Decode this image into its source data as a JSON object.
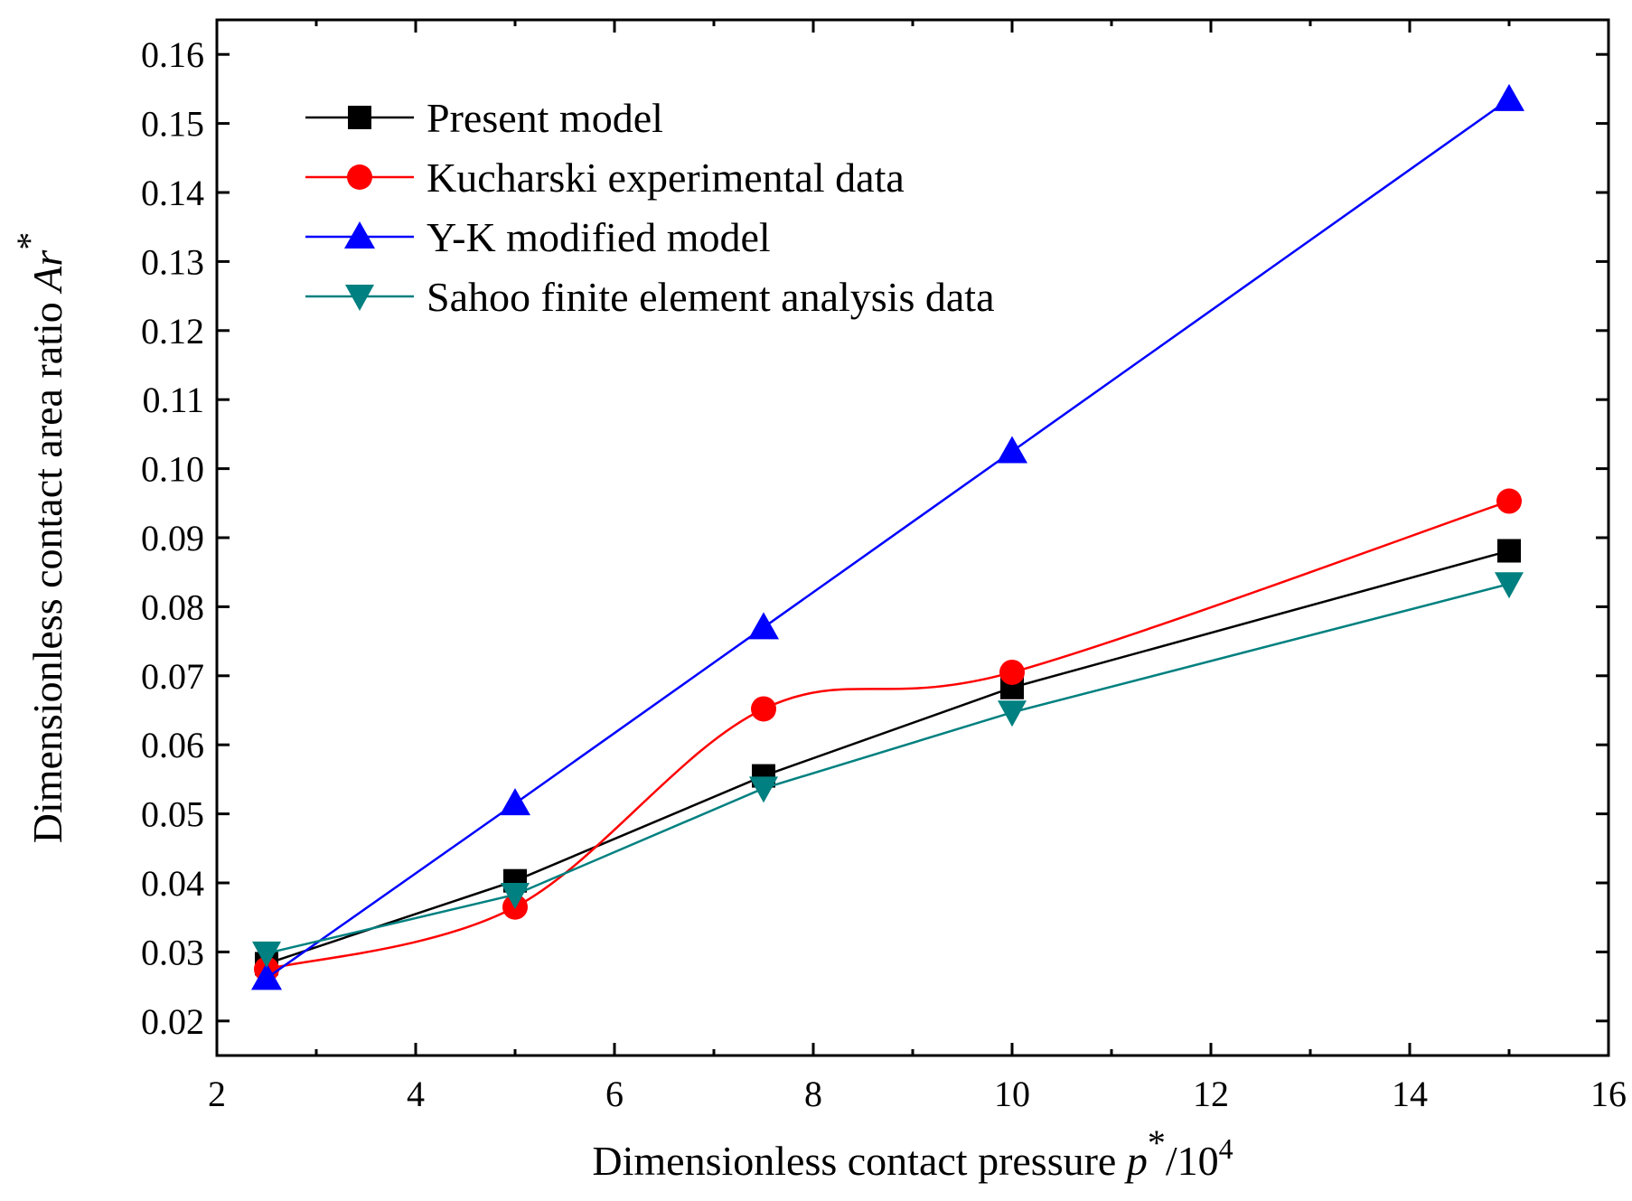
{
  "chart_data": {
    "type": "line",
    "title": "",
    "xlabel": {
      "prefix": "Dimensionless contact pressure ",
      "symbol": "p",
      "sup": "*",
      "suffix": "/10",
      "exp": "4"
    },
    "ylabel": {
      "prefix": "Dimensionless contact area ratio ",
      "symbol": "Ar",
      "sup": "*"
    },
    "xlim": [
      2,
      16
    ],
    "ylim": [
      0.015,
      0.165
    ],
    "xticks": [
      "2",
      "4",
      "6",
      "8",
      "10",
      "12",
      "14",
      "16"
    ],
    "yticks": [
      "0.02",
      "0.03",
      "0.04",
      "0.05",
      "0.06",
      "0.07",
      "0.08",
      "0.09",
      "0.10",
      "0.11",
      "0.12",
      "0.13",
      "0.14",
      "0.15",
      "0.16"
    ],
    "legend_position": "top-left",
    "series": [
      {
        "name": "Present model",
        "color": "#000000",
        "marker": "square",
        "smooth": false,
        "x": [
          2.5,
          5,
          7.5,
          10,
          15
        ],
        "values": [
          0.0283,
          0.0403,
          0.0555,
          0.0683,
          0.0881
        ]
      },
      {
        "name": "Kucharski experimental data",
        "color": "#ff0000",
        "marker": "circle",
        "smooth": true,
        "x": [
          2.5,
          5,
          7.5,
          10,
          15
        ],
        "values": [
          0.0275,
          0.0365,
          0.0652,
          0.0705,
          0.0953
        ]
      },
      {
        "name": "Y-K modified model",
        "color": "#0000ff",
        "marker": "triangle-up",
        "smooth": false,
        "x": [
          2.5,
          5,
          7.5,
          10,
          15
        ],
        "values": [
          0.0262,
          0.0515,
          0.077,
          0.1025,
          0.1535
        ]
      },
      {
        "name": "Sahoo finite element analysis data",
        "color": "#008080",
        "marker": "triangle-down",
        "smooth": false,
        "x": [
          2.5,
          5,
          7.5,
          10,
          15
        ],
        "values": [
          0.0298,
          0.0383,
          0.0537,
          0.0647,
          0.0833
        ]
      }
    ]
  }
}
